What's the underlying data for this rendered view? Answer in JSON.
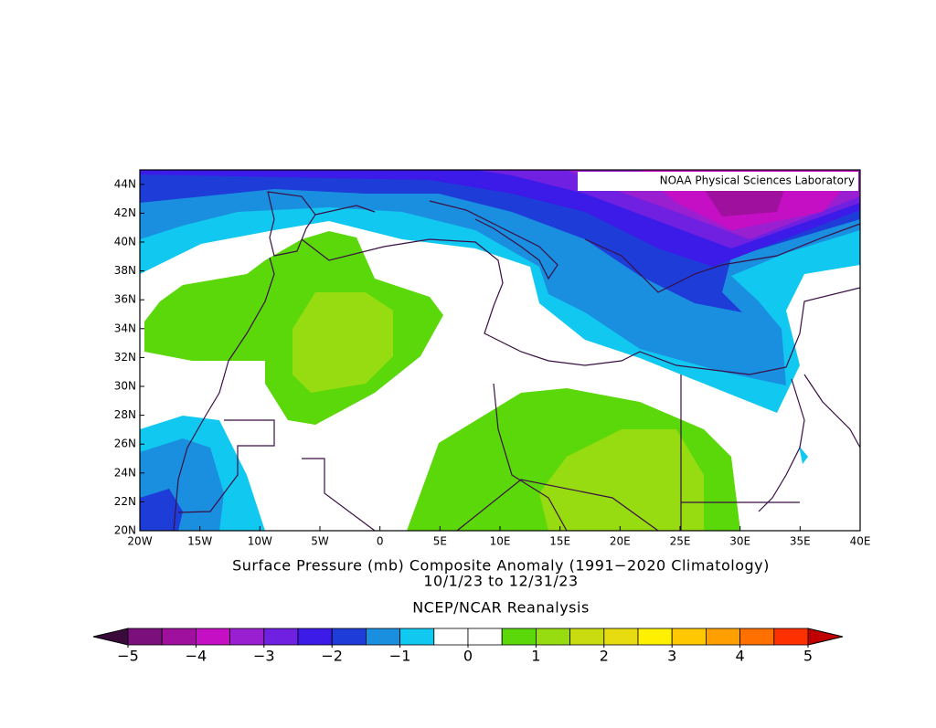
{
  "map": {
    "credit": "NOAA Physical Sciences Laboratory",
    "title_lines": [
      "Surface Pressure (mb) Composite Anomaly (1991−2020 Climatology)",
      "10/1/23  to 12/31/23",
      "NCEP/NCAR Reanalysis"
    ],
    "xlim": [
      -20,
      40
    ],
    "ylim": [
      20,
      45
    ],
    "xticks": [
      {
        "value": -20,
        "label": "20W"
      },
      {
        "value": -15,
        "label": "15W"
      },
      {
        "value": -10,
        "label": "10W"
      },
      {
        "value": -5,
        "label": "5W"
      },
      0,
      {
        "value": 5,
        "label": "5E"
      },
      {
        "value": 10,
        "label": "10E"
      },
      {
        "value": 15,
        "label": "15E"
      },
      {
        "value": 20,
        "label": "20E"
      },
      {
        "value": 25,
        "label": "25E"
      },
      {
        "value": 30,
        "label": "30E"
      },
      {
        "value": 35,
        "label": "35E"
      },
      {
        "value": 40,
        "label": "40E"
      }
    ],
    "yticks": [
      {
        "value": 20,
        "label": "20N"
      },
      {
        "value": 22,
        "label": "22N"
      },
      {
        "value": 24,
        "label": "24N"
      },
      {
        "value": 26,
        "label": "26N"
      },
      {
        "value": 28,
        "label": "28N"
      },
      {
        "value": 30,
        "label": "30N"
      },
      {
        "value": 32,
        "label": "32N"
      },
      {
        "value": 34,
        "label": "34N"
      },
      {
        "value": 36,
        "label": "36N"
      },
      {
        "value": 38,
        "label": "38N"
      },
      {
        "value": 40,
        "label": "40N"
      },
      {
        "value": 42,
        "label": "42N"
      },
      {
        "value": 44,
        "label": "44N"
      }
    ],
    "colorbar": {
      "ticks": [
        {
          "value": -5,
          "label": "−5"
        },
        {
          "value": -4,
          "label": "−4"
        },
        {
          "value": -3,
          "label": "−3"
        },
        {
          "value": -2,
          "label": "−2"
        },
        {
          "value": -1,
          "label": "−1"
        },
        0,
        1,
        2,
        3,
        4,
        5
      ],
      "under_color": "#3a0a3a",
      "over_color": "#c00000",
      "colors": [
        "#7b0f7b",
        "#a0109f",
        "#c40fc4",
        "#9a1fd0",
        "#7020e0",
        "#3c1ae8",
        "#1e3cd8",
        "#1a8fe0",
        "#10c8f0",
        "#ffffff",
        "#ffffff",
        "#5ad80a",
        "#96dc10",
        "#c8dc10",
        "#e6dc10",
        "#fff000",
        "#ffc800",
        "#ffa000",
        "#ff7000",
        "#ff3000"
      ]
    }
  }
}
